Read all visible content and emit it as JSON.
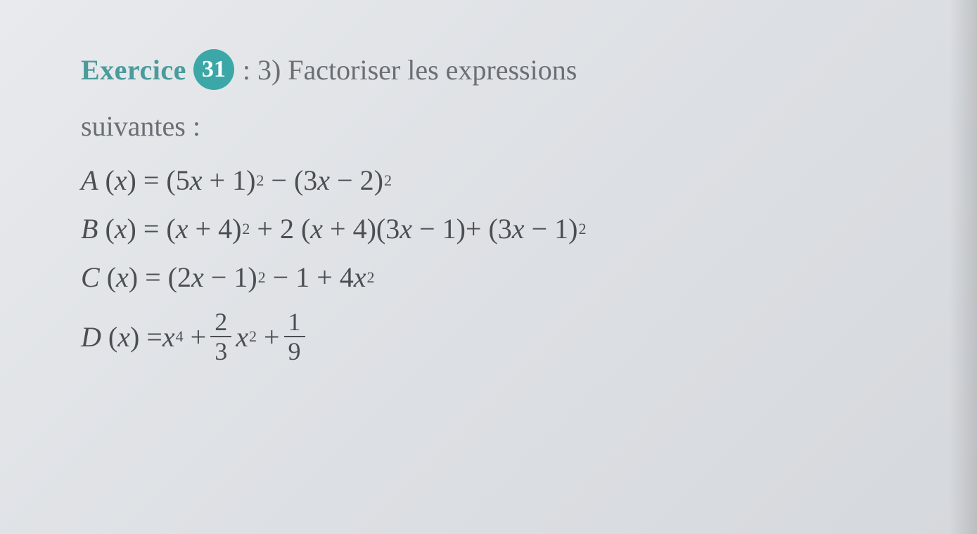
{
  "header": {
    "label": "Exercice",
    "badge": "31",
    "rest": ": 3) Factoriser les expressions"
  },
  "subtitle": "suivantes :",
  "equations": {
    "A": {
      "lhs": "A",
      "var": "x",
      "t1_coef": "5",
      "t1_var": "x",
      "t1_op": "+",
      "t1_c": "1",
      "t1_exp": "2",
      "mid_op": "−",
      "t2_coef": "3",
      "t2_var": "x",
      "t2_op": "−",
      "t2_c": "2",
      "t2_exp": "2"
    },
    "B": {
      "lhs": "B",
      "var": "x",
      "p1_a": "x",
      "p1_op": "+",
      "p1_b": "4",
      "p1_exp": "2",
      "mid1": "+ 2",
      "p2_a": "x",
      "p2_op": "+",
      "p2_b": "4",
      "p3_a": "3",
      "p3_v": "x",
      "p3_op": "−",
      "p3_b": "1",
      "mid2": "+",
      "p4_a": "3",
      "p4_v": "x",
      "p4_op": "−",
      "p4_b": "1",
      "p4_exp": "2"
    },
    "C": {
      "lhs": "C",
      "var": "x",
      "t1_coef": "2",
      "t1_var": "x",
      "t1_op": "−",
      "t1_c": "1",
      "t1_exp": "2",
      "rest_a": "− 1 + 4",
      "rest_var": "x",
      "rest_exp": "2"
    },
    "D": {
      "lhs": "D",
      "var": "x",
      "t1_var": "x",
      "t1_exp": "4",
      "op1": "+",
      "f1_num": "2",
      "f1_den": "3",
      "t2_var": "x",
      "t2_exp": "2",
      "op2": "+",
      "f2_num": "1",
      "f2_den": "9"
    }
  },
  "colors": {
    "teal": "#3ba7a7",
    "teal_text": "#4a9b9b",
    "body_text": "#4b4f54",
    "grey_text": "#6a6f75",
    "bg_light": "#e8eaed",
    "bg_dark": "#d5d8dc"
  }
}
